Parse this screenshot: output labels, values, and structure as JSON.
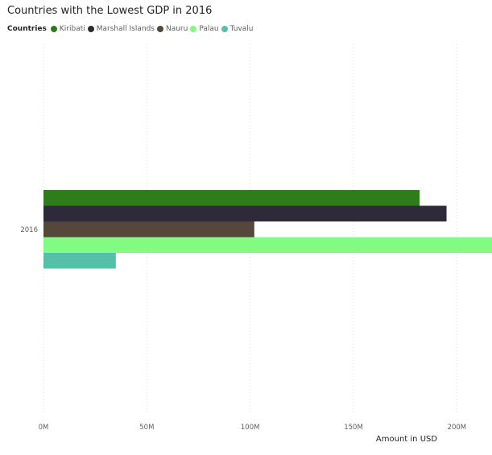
{
  "chart_data": {
    "type": "bar",
    "orientation": "horizontal",
    "title": "Countries with the Lowest GDP in 2016",
    "legend_title": "Countries",
    "legend_position": "top-left",
    "categories": [
      "2016"
    ],
    "series": [
      {
        "name": "Kiribati",
        "values": [
          182
        ],
        "color": "#2e7d1a"
      },
      {
        "name": "Marshall Islands",
        "values": [
          195
        ],
        "color": "#2e2a3a"
      },
      {
        "name": "Nauru",
        "values": [
          102
        ],
        "color": "#55483a"
      },
      {
        "name": "Palau",
        "values": [
          217
        ],
        "color": "#82fb84"
      },
      {
        "name": "Tuvalu",
        "values": [
          35
        ],
        "color": "#54c0aa"
      }
    ],
    "xlabel": "Amount in USD",
    "ylabel": "",
    "xlim": [
      0,
      217
    ],
    "x_ticks": [
      0,
      50,
      100,
      150,
      200
    ],
    "x_tick_labels": [
      "0M",
      "50M",
      "100M",
      "150M",
      "200M"
    ],
    "unit": "M",
    "grid": true
  }
}
